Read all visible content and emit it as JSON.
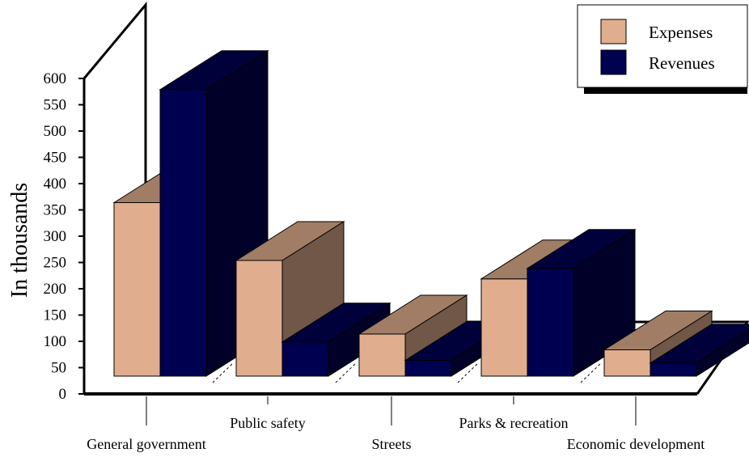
{
  "chart_data": {
    "type": "bar",
    "style": "3d-clustered",
    "ylabel": "In thousands",
    "ylim": [
      0,
      600
    ],
    "yticks": [
      0,
      50,
      100,
      150,
      200,
      250,
      300,
      350,
      400,
      450,
      500,
      550,
      600
    ],
    "categories": [
      "General government",
      "Public safety",
      "Streets",
      "Parks & recreation",
      "Economic development"
    ],
    "series": [
      {
        "name": "Expenses",
        "color": "#E0AE8E",
        "values": [
          330,
          220,
          80,
          185,
          50
        ]
      },
      {
        "name": "Revenues",
        "color": "#000050",
        "values": [
          545,
          65,
          30,
          205,
          25
        ]
      }
    ],
    "legend_position": "top-right"
  }
}
